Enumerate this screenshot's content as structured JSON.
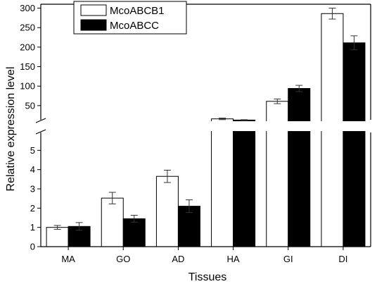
{
  "chart_data": {
    "type": "bar",
    "xlabel": "Tissues",
    "ylabel": "Relative expression level",
    "categories": [
      "MA",
      "GO",
      "AD",
      "HA",
      "GI",
      "DI"
    ],
    "series": [
      {
        "name": "McoABCB1",
        "fill": "#ffffff",
        "values": [
          1.0,
          2.52,
          3.65,
          16,
          61,
          286
        ],
        "errors": [
          0.1,
          0.3,
          0.32,
          2,
          6,
          14
        ]
      },
      {
        "name": "McoABCC",
        "fill": "#000000",
        "values": [
          1.05,
          1.45,
          2.1,
          13,
          94,
          211
        ],
        "errors": [
          0.2,
          0.18,
          0.33,
          1,
          8,
          18
        ]
      }
    ],
    "y_axis_broken": true,
    "y_lower_range": [
      0,
      6
    ],
    "y_upper_range": [
      10,
      310
    ],
    "y_lower_ticks": [
      0,
      1,
      2,
      3,
      4,
      5
    ],
    "y_upper_ticks": [
      50,
      100,
      150,
      200,
      250,
      300
    ],
    "legend_position": "top-left",
    "grid": false
  }
}
